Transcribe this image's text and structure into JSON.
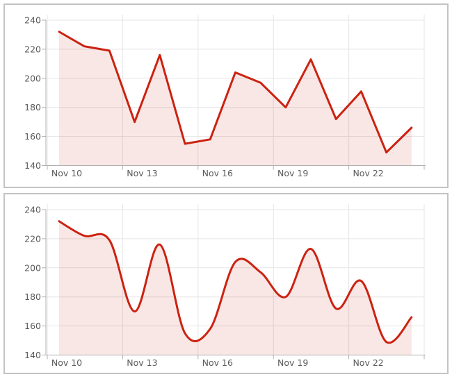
{
  "page": {
    "background": "#ffffff"
  },
  "chart_data": [
    {
      "id": "chart-linear",
      "type": "area",
      "line_style": "straight",
      "title": "",
      "xlabel": "",
      "ylabel": "",
      "x": [
        "Nov 10",
        "Nov 11",
        "Nov 12",
        "Nov 13",
        "Nov 14",
        "Nov 15",
        "Nov 16",
        "Nov 17",
        "Nov 18",
        "Nov 19",
        "Nov 20",
        "Nov 21",
        "Nov 22",
        "Nov 23",
        "Nov 24"
      ],
      "values": [
        232,
        222,
        219,
        170,
        216,
        155,
        158,
        204,
        197,
        180,
        213,
        172,
        191,
        149,
        166
      ],
      "xtick_labels": [
        "Nov 10",
        "Nov 13",
        "Nov 16",
        "Nov 19",
        "Nov 22"
      ],
      "yticks": [
        240,
        220,
        200,
        180,
        160,
        140
      ],
      "ylim": [
        140,
        240
      ],
      "grid": true,
      "legend": false,
      "colors": {
        "line": "#cc2211",
        "fill": "rgba(204,34,17,0.11)",
        "grid": "#e5e5e5",
        "axis": "#b0b0b0",
        "text": "#5a5a5c"
      }
    },
    {
      "id": "chart-smooth",
      "type": "area",
      "line_style": "smooth",
      "title": "",
      "xlabel": "",
      "ylabel": "",
      "x": [
        "Nov 10",
        "Nov 11",
        "Nov 12",
        "Nov 13",
        "Nov 14",
        "Nov 15",
        "Nov 16",
        "Nov 17",
        "Nov 18",
        "Nov 19",
        "Nov 20",
        "Nov 21",
        "Nov 22",
        "Nov 23",
        "Nov 24"
      ],
      "values": [
        232,
        222,
        219,
        170,
        216,
        155,
        158,
        204,
        197,
        180,
        213,
        172,
        191,
        149,
        166
      ],
      "xtick_labels": [
        "Nov 10",
        "Nov 13",
        "Nov 16",
        "Nov 19",
        "Nov 22"
      ],
      "yticks": [
        240,
        220,
        200,
        180,
        160,
        140
      ],
      "ylim": [
        140,
        240
      ],
      "grid": true,
      "legend": false,
      "colors": {
        "line": "#cc2211",
        "fill": "rgba(204,34,17,0.11)",
        "grid": "#e5e5e5",
        "axis": "#b0b0b0",
        "text": "#5a5a5c"
      }
    }
  ]
}
